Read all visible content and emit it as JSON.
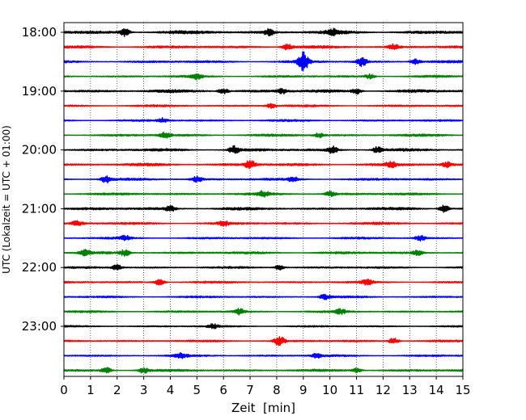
{
  "chart_data": {
    "type": "line",
    "title": "",
    "xlabel": "Zeit  [min]",
    "ylabel": "UTC (Lokalzeit = UTC + 01:00)",
    "xlim": [
      0,
      15
    ],
    "xticks": [
      "0",
      "1",
      "2",
      "3",
      "4",
      "5",
      "6",
      "7",
      "8",
      "9",
      "10",
      "11",
      "12",
      "13",
      "14",
      "15"
    ],
    "y_tick_labels": [
      "18:00",
      "19:00",
      "20:00",
      "21:00",
      "22:00",
      "23:00"
    ],
    "grid": "vertical dotted",
    "colors": [
      "#000000",
      "#ff0000",
      "#0000ff",
      "#008000"
    ],
    "traces": [
      {
        "time": "18:00",
        "color": "#000000",
        "amp": 1.0,
        "events": [
          [
            2.3,
            2.0
          ],
          [
            7.7,
            1.6
          ],
          [
            10.1,
            1.4
          ]
        ]
      },
      {
        "time": "18:15",
        "color": "#ff0000",
        "amp": 0.8,
        "events": [
          [
            8.4,
            1.6
          ],
          [
            12.4,
            1.4
          ]
        ]
      },
      {
        "time": "18:30",
        "color": "#0000ff",
        "amp": 0.7,
        "events": [
          [
            9.0,
            5.0
          ],
          [
            11.2,
            2.4
          ],
          [
            13.2,
            1.4
          ]
        ]
      },
      {
        "time": "18:45",
        "color": "#008000",
        "amp": 0.6,
        "events": [
          [
            5.0,
            1.6
          ],
          [
            11.5,
            1.2
          ]
        ]
      },
      {
        "time": "19:00",
        "color": "#000000",
        "amp": 0.9,
        "events": [
          [
            6.0,
            1.4
          ],
          [
            8.2,
            1.3
          ],
          [
            11.0,
            1.5
          ]
        ]
      },
      {
        "time": "19:15",
        "color": "#ff0000",
        "amp": 0.6,
        "events": [
          [
            7.8,
            1.2
          ]
        ]
      },
      {
        "time": "19:30",
        "color": "#0000ff",
        "amp": 0.6,
        "events": [
          [
            3.7,
            1.2
          ]
        ]
      },
      {
        "time": "19:45",
        "color": "#008000",
        "amp": 0.7,
        "events": [
          [
            3.8,
            1.4
          ],
          [
            9.6,
            1.2
          ]
        ]
      },
      {
        "time": "20:00",
        "color": "#000000",
        "amp": 0.8,
        "events": [
          [
            6.4,
            2.0
          ],
          [
            10.1,
            1.8
          ],
          [
            11.8,
            1.6
          ]
        ]
      },
      {
        "time": "20:15",
        "color": "#ff0000",
        "amp": 0.8,
        "events": [
          [
            7.0,
            2.2
          ],
          [
            12.3,
            1.4
          ],
          [
            14.4,
            1.4
          ]
        ]
      },
      {
        "time": "20:30",
        "color": "#0000ff",
        "amp": 0.7,
        "events": [
          [
            1.6,
            1.8
          ],
          [
            5.0,
            1.6
          ],
          [
            8.6,
            1.4
          ]
        ]
      },
      {
        "time": "20:45",
        "color": "#008000",
        "amp": 0.7,
        "events": [
          [
            7.5,
            1.5
          ],
          [
            10.0,
            1.4
          ]
        ]
      },
      {
        "time": "21:00",
        "color": "#000000",
        "amp": 0.8,
        "events": [
          [
            4.0,
            1.4
          ],
          [
            14.3,
            2.0
          ]
        ]
      },
      {
        "time": "21:15",
        "color": "#ff0000",
        "amp": 0.7,
        "events": [
          [
            0.5,
            1.4
          ],
          [
            6.0,
            1.3
          ]
        ]
      },
      {
        "time": "21:30",
        "color": "#0000ff",
        "amp": 0.6,
        "events": [
          [
            2.3,
            1.2
          ],
          [
            13.4,
            1.4
          ]
        ]
      },
      {
        "time": "21:45",
        "color": "#008000",
        "amp": 0.7,
        "events": [
          [
            0.8,
            1.4
          ],
          [
            2.3,
            1.6
          ],
          [
            13.3,
            1.3
          ]
        ]
      },
      {
        "time": "22:00",
        "color": "#000000",
        "amp": 0.6,
        "events": [
          [
            2.0,
            1.6
          ],
          [
            8.1,
            1.4
          ]
        ]
      },
      {
        "time": "22:15",
        "color": "#ff0000",
        "amp": 0.6,
        "events": [
          [
            3.6,
            1.6
          ],
          [
            11.4,
            1.4
          ]
        ]
      },
      {
        "time": "22:30",
        "color": "#0000ff",
        "amp": 0.6,
        "events": [
          [
            9.8,
            1.3
          ]
        ]
      },
      {
        "time": "22:45",
        "color": "#008000",
        "amp": 0.6,
        "events": [
          [
            6.6,
            1.5
          ],
          [
            10.4,
            1.2
          ]
        ]
      },
      {
        "time": "23:00",
        "color": "#000000",
        "amp": 0.5,
        "events": [
          [
            5.6,
            1.2
          ]
        ]
      },
      {
        "time": "23:15",
        "color": "#ff0000",
        "amp": 0.6,
        "events": [
          [
            8.1,
            2.6
          ],
          [
            12.4,
            1.6
          ]
        ]
      },
      {
        "time": "23:30",
        "color": "#0000ff",
        "amp": 0.6,
        "events": [
          [
            4.4,
            1.4
          ],
          [
            9.5,
            1.2
          ]
        ]
      },
      {
        "time": "23:45",
        "color": "#008000",
        "amp": 0.7,
        "events": [
          [
            1.6,
            1.6
          ],
          [
            3.0,
            1.4
          ],
          [
            11.0,
            1.3
          ]
        ]
      }
    ]
  }
}
